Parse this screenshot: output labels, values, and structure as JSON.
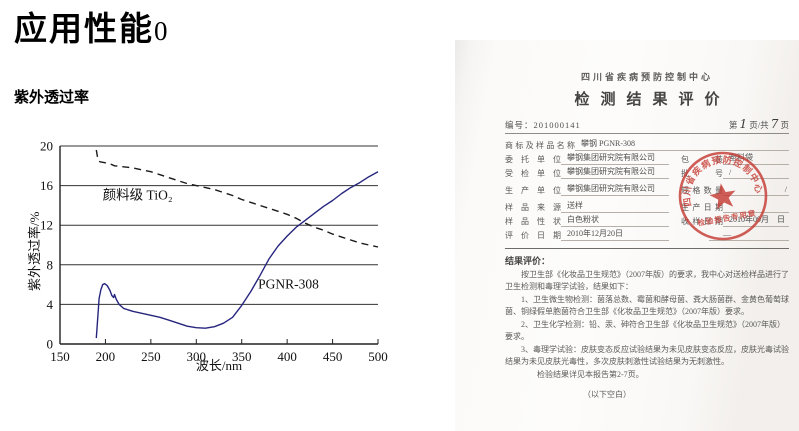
{
  "slide": {
    "title": "应用性能",
    "title_suffix": "0",
    "section_heading": "紫外透过率"
  },
  "chart_data": {
    "type": "line",
    "title": "紫外透过率",
    "xlabel": "波长/nm",
    "ylabel": "紫外透过率/%",
    "xlim": [
      150,
      500
    ],
    "ylim": [
      0,
      20
    ],
    "x_ticks": [
      150,
      200,
      250,
      300,
      350,
      400,
      450,
      500
    ],
    "y_ticks": [
      0,
      4,
      8,
      12,
      16,
      20
    ],
    "grid": "horizontal",
    "legend_position": "inline-annotations",
    "series": [
      {
        "name": "颜料级 TiO₂",
        "style": "dashed",
        "color": "#1a1a1a",
        "points": [
          [
            190,
            19.6
          ],
          [
            191,
            19.0
          ],
          [
            192,
            18.5
          ],
          [
            194,
            18.4
          ],
          [
            200,
            18.3
          ],
          [
            205,
            18.2
          ],
          [
            210,
            18.0
          ],
          [
            220,
            17.9
          ],
          [
            230,
            17.8
          ],
          [
            240,
            17.6
          ],
          [
            250,
            17.4
          ],
          [
            260,
            17.1
          ],
          [
            270,
            16.8
          ],
          [
            280,
            16.5
          ],
          [
            290,
            16.2
          ],
          [
            300,
            16.0
          ],
          [
            310,
            15.8
          ],
          [
            320,
            15.6
          ],
          [
            330,
            15.3
          ],
          [
            340,
            15.0
          ],
          [
            350,
            14.6
          ],
          [
            360,
            14.3
          ],
          [
            370,
            14.0
          ],
          [
            380,
            13.7
          ],
          [
            390,
            13.4
          ],
          [
            400,
            13.1
          ],
          [
            410,
            12.7
          ],
          [
            420,
            12.2
          ],
          [
            430,
            11.8
          ],
          [
            440,
            11.5
          ],
          [
            450,
            11.1
          ],
          [
            460,
            10.8
          ],
          [
            470,
            10.5
          ],
          [
            480,
            10.2
          ],
          [
            490,
            10.0
          ],
          [
            500,
            9.8
          ]
        ]
      },
      {
        "name": "PGNR-308",
        "style": "solid",
        "color": "#26267e",
        "points": [
          [
            190,
            0.6
          ],
          [
            191,
            2.0
          ],
          [
            193,
            4.6
          ],
          [
            195,
            5.5
          ],
          [
            197,
            6.0
          ],
          [
            199,
            6.1
          ],
          [
            202,
            5.9
          ],
          [
            205,
            5.4
          ],
          [
            207,
            4.9
          ],
          [
            209,
            4.7
          ],
          [
            210,
            5.0
          ],
          [
            212,
            4.5
          ],
          [
            215,
            4.0
          ],
          [
            220,
            3.6
          ],
          [
            230,
            3.3
          ],
          [
            240,
            3.1
          ],
          [
            250,
            2.9
          ],
          [
            260,
            2.7
          ],
          [
            270,
            2.4
          ],
          [
            280,
            2.1
          ],
          [
            290,
            1.8
          ],
          [
            300,
            1.65
          ],
          [
            310,
            1.6
          ],
          [
            320,
            1.75
          ],
          [
            330,
            2.1
          ],
          [
            340,
            2.7
          ],
          [
            350,
            3.9
          ],
          [
            360,
            5.3
          ],
          [
            370,
            6.9
          ],
          [
            380,
            8.6
          ],
          [
            390,
            9.9
          ],
          [
            400,
            10.9
          ],
          [
            410,
            11.8
          ],
          [
            420,
            12.5
          ],
          [
            430,
            13.2
          ],
          [
            440,
            13.9
          ],
          [
            450,
            14.5
          ],
          [
            460,
            15.2
          ],
          [
            470,
            15.8
          ],
          [
            480,
            16.3
          ],
          [
            490,
            16.9
          ],
          [
            500,
            17.4
          ]
        ]
      }
    ],
    "annotations": [
      {
        "text": "颜料级 TiO₂",
        "x": 197,
        "y": 14.6
      },
      {
        "text": "PGNR-308",
        "x": 368,
        "y": 5.6
      }
    ]
  },
  "document": {
    "org": "四川省疾病预防控制中心",
    "title": "检测结果评价",
    "report_no_label": "编号：",
    "report_no": "201000141",
    "page": {
      "prefix": "第",
      "num": "1",
      "mid": "页/共",
      "total": "7",
      "suffix": "页"
    },
    "fields": {
      "sample_name": {
        "label": "商标及样品名称",
        "value": "攀钢 PGNR-308"
      },
      "client": {
        "label": "委托单位",
        "value": "攀钢集团研究院有限公司"
      },
      "packaging": {
        "label": "包装",
        "value": "塑料袋"
      },
      "inspected_unit": {
        "label": "受检单位",
        "value": "攀钢集团研究院有限公司"
      },
      "batch_no": {
        "label": "批号",
        "value": "/"
      },
      "manufacturer": {
        "label": "生产单位",
        "value": "攀钢集团研究院有限公司"
      },
      "spec_quantity": {
        "label": "规格数量",
        "value": "",
        "trailing_mark": "/"
      },
      "sample_source": {
        "label": "样品来源",
        "value": "送样"
      },
      "production_date": {
        "label": "生产日期",
        "value": ""
      },
      "sample_appearance": {
        "label": "样品性状",
        "value": "白色粉状"
      },
      "receipt_date": {
        "label": "收样日期",
        "value": "2010年09月　日"
      },
      "evaluation_date": {
        "label": "评价日期",
        "value": "2010年12月20日",
        "dash_mark": "—"
      }
    },
    "result": {
      "heading": "结果评价：",
      "paragraphs": [
        "按卫生部《化妆品卫生规范》（2007年版）的要求，我中心对送检样品进行了卫生检测和毒理学试验，结果如下：",
        "1、卫生微生物检测：菌落总数、霉菌和酵母菌、粪大肠菌群、金黄色葡萄球菌、铜绿假单胞菌符合卫生部《化妆品卫生规范》（2007年版）要求。",
        "2、卫生化学检测：铅、汞、砷符合卫生部《化妆品卫生规范》（2007年版）要求。",
        "3、毒理学试验：皮肤变态反应试验结果为未见皮肤变态反应，皮肤光毒试验结果为未见皮肤光毒性，多次皮肤刺激性试验结果为无刺激性。",
        "检验结果详见本报告第2-7页。"
      ],
      "footer": "（以下空白）"
    },
    "stamp": {
      "ring_text": "四川省疾病预防控制中心",
      "banner_text": "检验报告专用章",
      "color": "#c63c35"
    }
  }
}
